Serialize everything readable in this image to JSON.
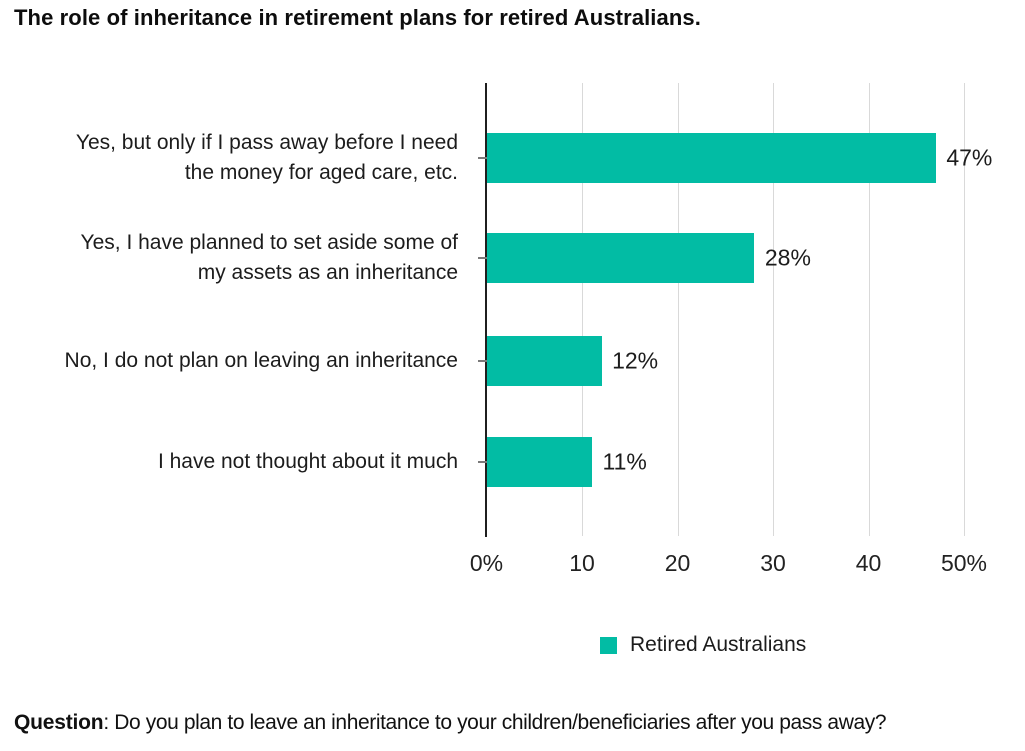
{
  "title": "The role of inheritance in retirement plans for retired Australians.",
  "colors": {
    "bar": "#02BCA4",
    "axis": "#1f1f1f",
    "gridline": "#d9d9d9",
    "text": "#1c1c1c"
  },
  "chart_data": {
    "type": "bar",
    "orientation": "horizontal",
    "title": "The role of inheritance in retirement plans for retired Australians.",
    "categories": [
      "Yes, but only if I pass away before I need\nthe money for aged care, etc.",
      "Yes, I have planned to set aside some of\nmy assets as an inheritance",
      "No, I do not plan on leaving an inheritance",
      "I have not thought about it much"
    ],
    "series": [
      {
        "name": "Retired Australians",
        "values": [
          47,
          28,
          12,
          11
        ]
      }
    ],
    "value_labels": [
      "47%",
      "28%",
      "12%",
      "11%"
    ],
    "x_ticks": [
      {
        "value": 0,
        "label": "0%"
      },
      {
        "value": 10,
        "label": "10"
      },
      {
        "value": 20,
        "label": "20"
      },
      {
        "value": 30,
        "label": "30"
      },
      {
        "value": 40,
        "label": "40"
      },
      {
        "value": 50,
        "label": "50%"
      }
    ],
    "xlim": [
      0,
      50
    ],
    "grid": true,
    "legend_position": "bottom"
  },
  "legend": {
    "label": "Retired Australians",
    "swatch_color": "#02BCA4"
  },
  "footer": {
    "bold": "Question",
    "rest": ": Do you plan to leave an inheritance to your children/beneficiaries after you pass away?"
  }
}
